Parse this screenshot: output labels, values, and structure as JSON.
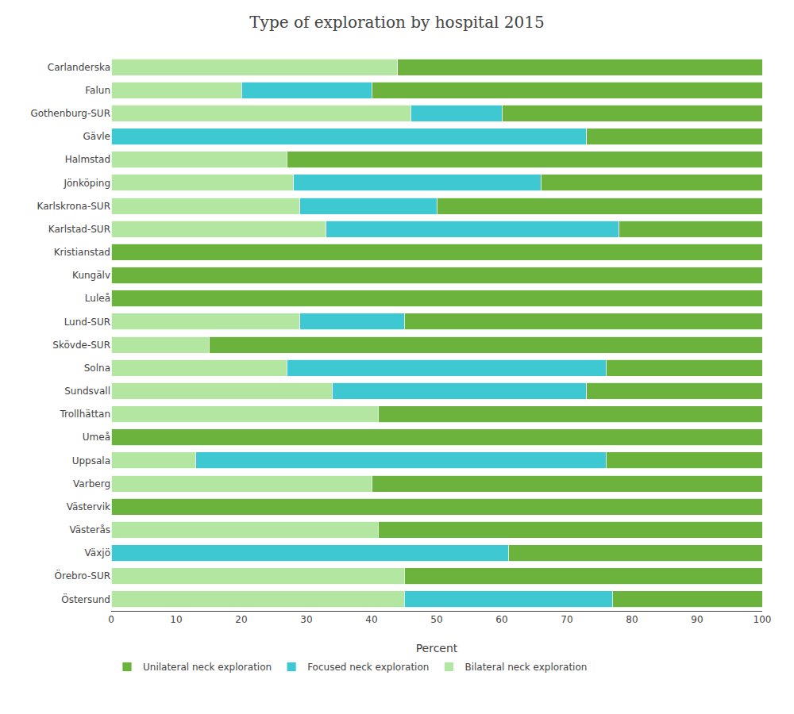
{
  "chart_data": {
    "type": "bar",
    "title": "Type of exploration by hospital 2015",
    "xlabel": "Percent",
    "orientation": "horizontal",
    "stacked": true,
    "grid": false,
    "legend": "bottom",
    "categories": [
      "Carlanderska",
      "Falun",
      "Gothenburg-SUR",
      "Gävle",
      "Halmstad",
      "Jönköping",
      "Karlskrona-SUR",
      "Karlstad-SUR",
      "Kristianstad",
      "Kungälv",
      "Luleå",
      "Lund-SUR",
      "Skövde-SUR",
      "Solna",
      "Sundsvall",
      "Trollhättan",
      "Umeå",
      "Uppsala",
      "Varberg",
      "Västervik",
      "Västerås",
      "Växjö",
      "Örebro-SUR",
      "Östersund"
    ],
    "series": [
      {
        "name": "Bilateral neck exploration",
        "color": "#b3e6a1",
        "values": [
          44,
          20,
          46,
          0,
          27,
          28,
          29,
          33,
          0,
          0,
          0,
          29,
          15,
          27,
          34,
          41,
          0,
          13,
          40,
          0,
          41,
          0,
          45,
          45
        ]
      },
      {
        "name": "Focused neck exploration",
        "color": "#3ec8d2",
        "values": [
          0,
          20,
          14,
          73,
          0,
          38,
          21,
          45,
          0,
          0,
          0,
          16,
          0,
          49,
          39,
          0,
          0,
          63,
          0,
          0,
          0,
          61,
          0,
          32
        ]
      },
      {
        "name": "Unilateral neck exploration",
        "color": "#6cb33e",
        "values": [
          56,
          60,
          40,
          27,
          73,
          34,
          50,
          22,
          100,
          100,
          100,
          55,
          85,
          24,
          27,
          59,
          100,
          24,
          60,
          100,
          59,
          39,
          55,
          23
        ]
      }
    ],
    "xlim": [
      0,
      100
    ],
    "xticks": [
      0,
      10,
      20,
      30,
      40,
      50,
      60,
      70,
      80,
      90,
      100
    ]
  }
}
